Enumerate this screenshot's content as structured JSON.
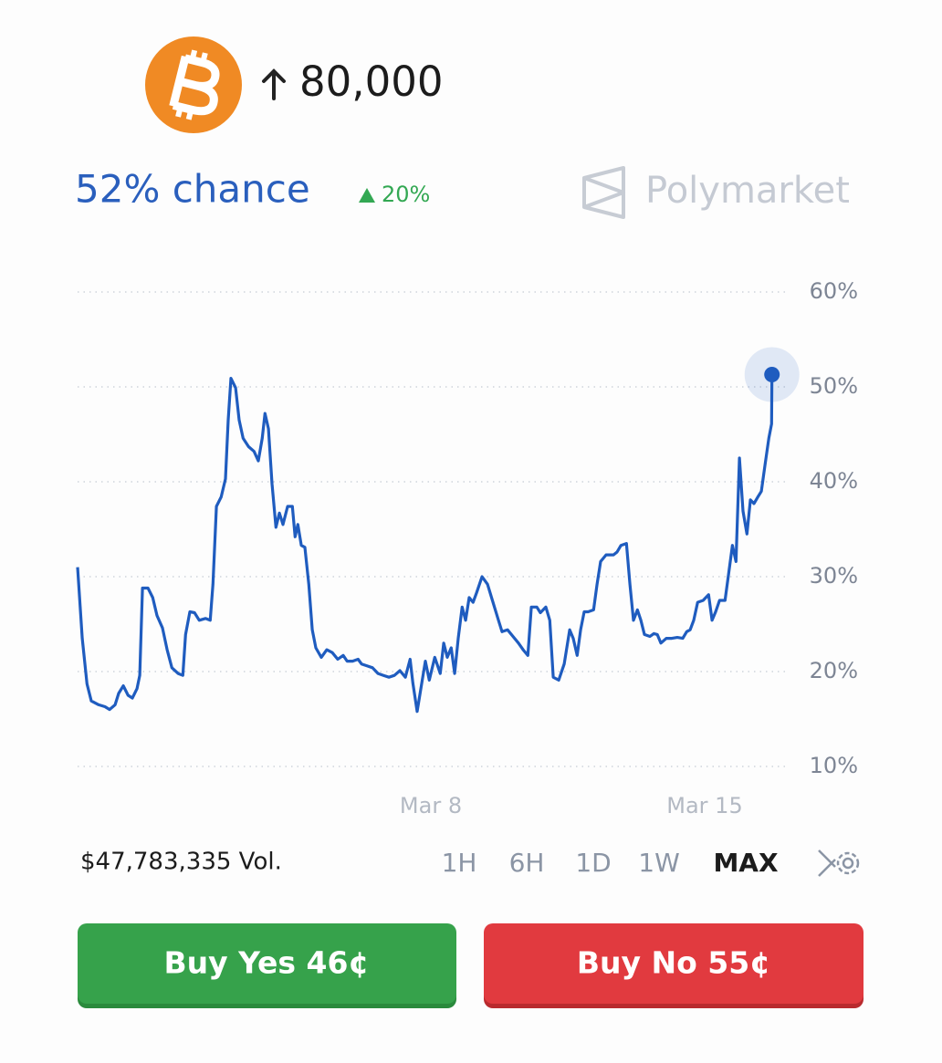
{
  "header": {
    "title": "80,000"
  },
  "odds": {
    "chance": "52% chance",
    "change": "20%"
  },
  "brand": "Polymarket",
  "chart_data": {
    "type": "line",
    "x": [
      -1.03,
      -0.91,
      -0.79,
      -0.68,
      -0.49,
      -0.33,
      -0.21,
      -0.07,
      0.02,
      0.14,
      0.26,
      0.37,
      0.49,
      0.56,
      0.63,
      0.77,
      0.89,
      1.0,
      1.14,
      1.26,
      1.38,
      1.54,
      1.66,
      1.73,
      1.84,
      1.96,
      2.08,
      2.24,
      2.36,
      2.43,
      2.52,
      2.64,
      2.75,
      2.82,
      2.89,
      3.01,
      3.1,
      3.2,
      3.34,
      3.48,
      3.59,
      3.69,
      3.76,
      3.85,
      3.94,
      4.04,
      4.13,
      4.22,
      4.34,
      4.46,
      4.53,
      4.6,
      4.69,
      4.78,
      4.88,
      4.97,
      5.06,
      5.2,
      5.34,
      5.48,
      5.62,
      5.76,
      5.86,
      6.0,
      6.14,
      6.23,
      6.37,
      6.51,
      6.65,
      6.79,
      6.93,
      7.07,
      7.21,
      7.35,
      7.47,
      7.54,
      7.65,
      7.77,
      7.86,
      7.96,
      8.1,
      8.24,
      8.33,
      8.42,
      8.52,
      8.61,
      8.7,
      8.8,
      8.89,
      8.98,
      9.08,
      9.17,
      9.31,
      9.45,
      9.59,
      9.73,
      9.82,
      9.96,
      10.1,
      10.24,
      10.36,
      10.48,
      10.57,
      10.71,
      10.8,
      10.94,
      11.04,
      11.13,
      11.27,
      11.41,
      11.55,
      11.64,
      11.74,
      11.83,
      11.92,
      12.02,
      12.16,
      12.25,
      12.34,
      12.48,
      12.67,
      12.76,
      12.86,
      13.0,
      13.09,
      13.18,
      13.28,
      13.37,
      13.46,
      13.6,
      13.7,
      13.79,
      13.88,
      14.02,
      14.16,
      14.3,
      14.44,
      14.54,
      14.63,
      14.72,
      14.82,
      14.96,
      15.1,
      15.19,
      15.28,
      15.38,
      15.52,
      15.61,
      15.71,
      15.8,
      15.89,
      15.98,
      16.08,
      16.17,
      16.26,
      16.36,
      16.45,
      16.54,
      16.64,
      16.71,
      16.72
    ],
    "series": [
      {
        "color": "#1f5cbf",
        "values": [
          31.0,
          23.5,
          18.7,
          16.9,
          16.5,
          16.3,
          16.0,
          16.5,
          17.7,
          18.5,
          17.5,
          17.2,
          18.2,
          19.6,
          28.8,
          28.8,
          27.8,
          25.9,
          24.6,
          22.3,
          20.4,
          19.8,
          19.6,
          23.9,
          26.3,
          26.2,
          25.4,
          25.6,
          25.4,
          29.2,
          37.4,
          38.4,
          40.3,
          46.5,
          50.9,
          49.9,
          46.5,
          44.6,
          43.7,
          43.2,
          42.2,
          44.6,
          47.2,
          45.6,
          39.8,
          35.2,
          36.7,
          35.5,
          37.4,
          37.4,
          34.2,
          35.5,
          33.3,
          33.1,
          29.2,
          24.4,
          22.5,
          21.5,
          22.3,
          22.0,
          21.3,
          21.7,
          21.1,
          21.1,
          21.3,
          20.8,
          20.6,
          20.4,
          19.8,
          19.6,
          19.4,
          19.6,
          20.1,
          19.4,
          21.3,
          18.8,
          15.8,
          18.8,
          21.1,
          19.1,
          21.5,
          19.8,
          23.0,
          21.5,
          22.5,
          19.8,
          23.5,
          26.8,
          25.4,
          27.8,
          27.3,
          28.3,
          30.0,
          29.2,
          27.3,
          25.4,
          24.2,
          24.4,
          23.7,
          23.0,
          22.3,
          21.7,
          26.8,
          26.8,
          26.2,
          26.8,
          25.4,
          19.4,
          19.1,
          20.8,
          24.4,
          23.5,
          21.7,
          24.4,
          26.3,
          26.3,
          26.5,
          29.2,
          31.6,
          32.3,
          32.3,
          32.6,
          33.3,
          33.5,
          29.2,
          25.4,
          26.5,
          25.4,
          23.9,
          23.7,
          24.0,
          23.9,
          23.0,
          23.5,
          23.5,
          23.6,
          23.5,
          24.2,
          24.4,
          25.4,
          27.3,
          27.5,
          28.1,
          25.4,
          26.3,
          27.5,
          27.5,
          30.2,
          33.3,
          31.6,
          42.5,
          36.9,
          34.5,
          38.1,
          37.7,
          38.4,
          39.0,
          41.7,
          44.6,
          46.1,
          51.3
        ]
      }
    ],
    "xlim": [
      -1.03,
      17.1
    ],
    "xticks": [
      {
        "value": 8,
        "label": "Mar 8"
      },
      {
        "value": 15,
        "label": "Mar 15"
      }
    ],
    "ylim": [
      10,
      60
    ],
    "yticks": [
      {
        "value": 10,
        "label": "10%"
      },
      {
        "value": 20,
        "label": "20%"
      },
      {
        "value": 30,
        "label": "30%"
      },
      {
        "value": 40,
        "label": "40%"
      },
      {
        "value": 50,
        "label": "50%"
      },
      {
        "value": 60,
        "label": "60%"
      }
    ],
    "grid": true
  },
  "footer": {
    "volume": "$47,783,335 Vol.",
    "ranges": [
      "1H",
      "6H",
      "1D",
      "1W",
      "MAX"
    ],
    "selected_range": "MAX"
  },
  "buttons": {
    "yes": "Buy Yes 46¢",
    "no": "Buy No 55¢"
  }
}
